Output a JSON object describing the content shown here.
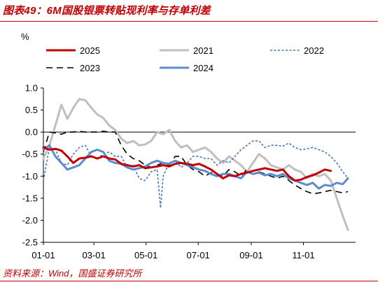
{
  "header": {
    "title": "图表49：6M国股银票转贴现利率与存单利差",
    "source": "资料来源：Wind，国盛证券研究所"
  },
  "chart_data": {
    "type": "line",
    "unit_label": "%",
    "ylim": [
      -2.5,
      1.0
    ],
    "yticks": [
      1.0,
      0.5,
      0.0,
      -0.5,
      -1.0,
      -1.5,
      -2.0,
      -2.5
    ],
    "ytick_labels": [
      "1.0",
      "0.5",
      "0.0",
      "-0.5",
      "-1.0",
      "-1.5",
      "-2.0",
      "-2.5"
    ],
    "xlim": [
      0,
      365
    ],
    "xticks": [
      0,
      59,
      120,
      181,
      243,
      304
    ],
    "xtick_labels": [
      "01-01",
      "03-01",
      "05-01",
      "07-01",
      "09-01",
      "11-01"
    ],
    "grid": false,
    "legend_position": "top",
    "series": [
      {
        "name": "2025",
        "color": "#c00000",
        "style": "solid",
        "x": [
          0,
          7,
          14,
          21,
          28,
          35,
          42,
          49,
          56,
          63,
          70,
          77,
          84,
          91,
          98,
          105,
          112,
          119,
          126,
          133,
          140,
          147,
          154,
          161,
          168,
          175,
          182,
          189,
          196,
          203,
          210,
          217,
          224,
          231,
          238,
          245,
          252,
          259,
          266,
          273,
          280,
          287,
          294,
          301,
          308,
          315,
          322,
          329,
          336
        ],
        "y": [
          -0.35,
          -0.4,
          -0.38,
          -0.42,
          -0.55,
          -0.7,
          -0.6,
          -0.58,
          -0.55,
          -0.6,
          -0.55,
          -0.6,
          -0.62,
          -0.72,
          -0.75,
          -0.78,
          -0.75,
          -0.82,
          -0.8,
          -0.78,
          -0.75,
          -0.78,
          -0.72,
          -0.7,
          -0.72,
          -0.75,
          -0.72,
          -0.78,
          -0.85,
          -0.95,
          -1.05,
          -0.98,
          -1.0,
          -0.95,
          -0.92,
          -0.88,
          -0.85,
          -0.82,
          -0.85,
          -0.88,
          -0.85,
          -1.0,
          -1.1,
          -1.08,
          -1.02,
          -0.98,
          -0.92,
          -0.85,
          -0.88
        ]
      },
      {
        "name": "2021",
        "color": "#bfbfbf",
        "style": "solid",
        "x": [
          0,
          7,
          14,
          21,
          28,
          35,
          42,
          49,
          56,
          63,
          70,
          77,
          84,
          91,
          98,
          105,
          112,
          119,
          126,
          133,
          140,
          147,
          154,
          161,
          168,
          175,
          182,
          189,
          196,
          203,
          210,
          217,
          224,
          231,
          238,
          245,
          252,
          259,
          266,
          273,
          280,
          287,
          294,
          301,
          308,
          315,
          322,
          329,
          336,
          343,
          350,
          356
        ],
        "y": [
          -0.6,
          -0.3,
          0.15,
          0.62,
          0.3,
          0.55,
          0.75,
          0.72,
          0.55,
          0.4,
          0.32,
          0.15,
          0.05,
          -0.15,
          -0.25,
          -0.2,
          -0.3,
          -0.28,
          -0.2,
          0.0,
          -0.05,
          0.05,
          -0.2,
          -0.35,
          -0.3,
          -0.45,
          -0.4,
          -0.35,
          -0.45,
          -0.6,
          -0.7,
          -0.55,
          -0.65,
          -0.75,
          -0.9,
          -0.7,
          -0.5,
          -0.6,
          -0.75,
          -0.8,
          -0.85,
          -0.75,
          -0.85,
          -0.9,
          -1.05,
          -0.95,
          -1.0,
          -0.95,
          -1.1,
          -1.5,
          -1.9,
          -2.22
        ]
      },
      {
        "name": "2022",
        "color": "#4472c4",
        "style": "dotted",
        "x": [
          0,
          7,
          14,
          21,
          28,
          35,
          42,
          49,
          56,
          63,
          70,
          77,
          84,
          91,
          98,
          105,
          112,
          119,
          126,
          133,
          137,
          140,
          147,
          154,
          161,
          168,
          175,
          182,
          189,
          196,
          203,
          210,
          217,
          224,
          231,
          238,
          245,
          252,
          259,
          266,
          273,
          280,
          287,
          294,
          301,
          308,
          315,
          322,
          329,
          336,
          343,
          350,
          356
        ],
        "y": [
          -1.1,
          -0.35,
          -0.4,
          -0.7,
          -0.75,
          -0.5,
          -0.35,
          -0.3,
          -0.55,
          -0.6,
          -0.5,
          -0.45,
          -0.55,
          -0.55,
          -0.8,
          -0.75,
          -1.05,
          -1.1,
          -0.9,
          -0.85,
          -1.72,
          -1.0,
          -0.7,
          -0.65,
          -0.8,
          -0.7,
          -0.55,
          -0.55,
          -0.6,
          -0.6,
          -0.75,
          -0.65,
          -0.7,
          -0.55,
          -0.4,
          -0.3,
          -0.2,
          -0.2,
          -0.35,
          -0.3,
          -0.3,
          -0.32,
          -0.25,
          -0.35,
          -0.4,
          -0.38,
          -0.35,
          -0.4,
          -0.45,
          -0.55,
          -0.7,
          -0.9,
          -1.05
        ]
      },
      {
        "name": "2023",
        "color": "#000000",
        "style": "dashed",
        "x": [
          0,
          7,
          14,
          21,
          28,
          35,
          42,
          49,
          56,
          63,
          70,
          77,
          84,
          91,
          98,
          105,
          112,
          119,
          126,
          133,
          140,
          147,
          154,
          161,
          168,
          175,
          182,
          189,
          196,
          203,
          210,
          217,
          224,
          231,
          238,
          245,
          252,
          259,
          266,
          273,
          280,
          287,
          294,
          301,
          308,
          315,
          322,
          329,
          336,
          343,
          350,
          356
        ],
        "y": [
          -0.45,
          0.0,
          -0.02,
          -0.05,
          0.0,
          0.0,
          0.02,
          0.0,
          0.0,
          0.0,
          0.02,
          0.0,
          0.0,
          -0.3,
          -0.5,
          -0.6,
          -0.65,
          -0.75,
          -0.8,
          -0.75,
          -0.7,
          -0.75,
          -0.55,
          -0.55,
          -0.75,
          -0.85,
          -0.9,
          -1.0,
          -0.92,
          -0.95,
          -1.0,
          -0.85,
          -0.9,
          -1.0,
          -0.85,
          -0.95,
          -0.9,
          -0.95,
          -1.0,
          -1.05,
          -1.0,
          -1.1,
          -1.2,
          -1.28,
          -1.35,
          -1.4,
          -1.38,
          -1.35,
          -1.32,
          -1.35,
          -1.38,
          -1.35
        ]
      },
      {
        "name": "2024",
        "color": "#5b8bd0",
        "style": "solid",
        "x": [
          0,
          7,
          14,
          21,
          28,
          35,
          42,
          49,
          56,
          63,
          70,
          77,
          84,
          91,
          98,
          105,
          112,
          119,
          126,
          133,
          140,
          147,
          154,
          161,
          168,
          175,
          182,
          189,
          196,
          203,
          210,
          217,
          224,
          231,
          238,
          245,
          252,
          259,
          266,
          273,
          280,
          287,
          294,
          301,
          308,
          315,
          322,
          329,
          336,
          343,
          350,
          356
        ],
        "y": [
          -0.4,
          -0.3,
          -0.55,
          -0.7,
          -0.85,
          -0.8,
          -0.75,
          -0.6,
          -0.45,
          -0.4,
          -0.45,
          -0.65,
          -0.7,
          -0.72,
          -0.8,
          -0.85,
          -0.82,
          -0.78,
          -0.7,
          -0.65,
          -0.7,
          -0.72,
          -0.65,
          -0.7,
          -0.75,
          -0.8,
          -0.85,
          -0.88,
          -0.95,
          -1.0,
          -0.95,
          -0.95,
          -1.0,
          -1.05,
          -0.9,
          -0.95,
          -0.92,
          -0.98,
          -0.95,
          -1.0,
          -0.95,
          -1.05,
          -1.1,
          -1.15,
          -1.2,
          -1.15,
          -1.28,
          -1.2,
          -1.22,
          -1.15,
          -1.18,
          -1.05
        ]
      }
    ]
  }
}
